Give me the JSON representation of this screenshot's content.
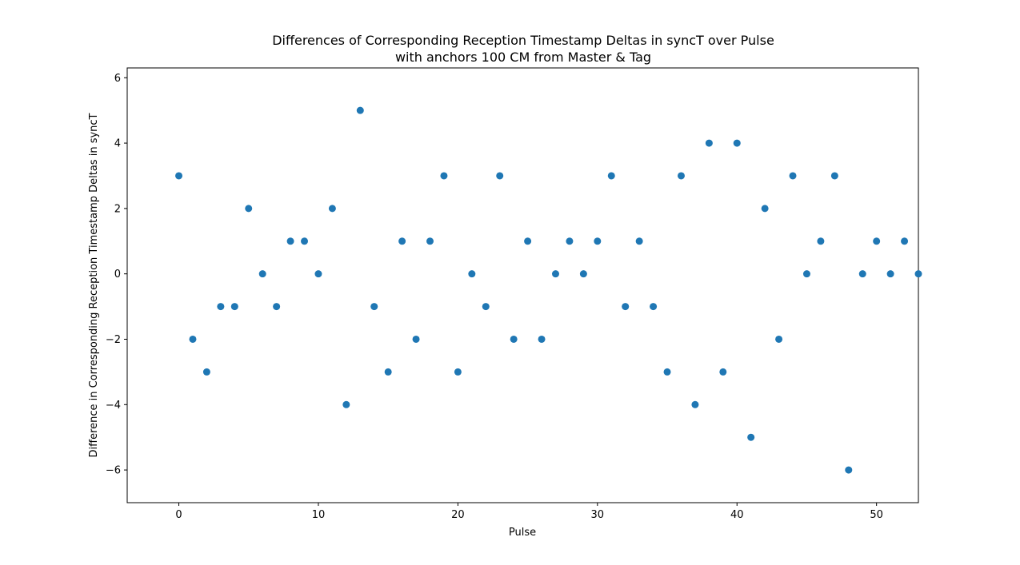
{
  "chart_data": {
    "type": "scatter",
    "title": "Differences of Corresponding Reception Timestamp Deltas in syncT over Pulse",
    "subtitle": "with anchors 100 CM from Master & Tag",
    "xlabel": "Pulse",
    "ylabel": "Difference in Corresponding Reception Timestamp Deltas in syncT",
    "xlim": [
      -3.7,
      53
    ],
    "ylim": [
      -7,
      6.3
    ],
    "xticks": [
      0,
      10,
      20,
      30,
      40,
      50
    ],
    "yticks": [
      -6,
      -4,
      -2,
      0,
      2,
      4,
      6
    ],
    "xtick_labels": [
      "0",
      "10",
      "20",
      "30",
      "40",
      "50"
    ],
    "ytick_labels": [
      "−6",
      "−4",
      "−2",
      "0",
      "2",
      "4",
      "6"
    ],
    "grid": false,
    "legend": null,
    "marker_color": "#1f77b4",
    "x": [
      0,
      1,
      2,
      3,
      4,
      5,
      6,
      7,
      8,
      9,
      10,
      11,
      12,
      13,
      14,
      15,
      16,
      17,
      18,
      19,
      20,
      21,
      22,
      23,
      24,
      25,
      26,
      27,
      28,
      29,
      30,
      31,
      32,
      33,
      34,
      35,
      36,
      37,
      38,
      39,
      40,
      41,
      42,
      43,
      44,
      45,
      46,
      47,
      48,
      49,
      50,
      51,
      52,
      53
    ],
    "y": [
      3,
      -2,
      -3,
      -1,
      -1,
      2,
      0,
      -1,
      1,
      1,
      0,
      2,
      -4,
      5,
      -1,
      -3,
      1,
      -2,
      1,
      3,
      -3,
      0,
      -1,
      3,
      -2,
      1,
      -2,
      0,
      1,
      0,
      1,
      3,
      -1,
      1,
      -1,
      -3,
      3,
      -4,
      4,
      -3,
      4,
      -5,
      2,
      -2,
      3,
      0,
      1,
      3,
      -6,
      0,
      1,
      0,
      1,
      0
    ]
  }
}
